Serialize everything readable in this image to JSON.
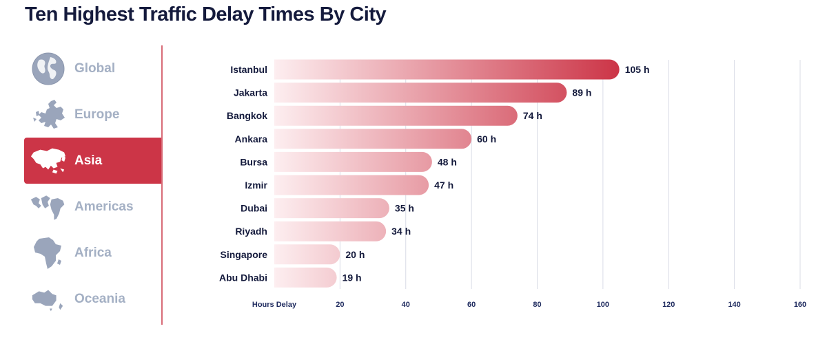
{
  "title": "Ten Highest Traffic Delay Times By City",
  "sidebar": {
    "items": [
      {
        "label": "Global",
        "icon": "globe-icon",
        "active": false
      },
      {
        "label": "Europe",
        "icon": "europe-map-icon",
        "active": false
      },
      {
        "label": "Asia",
        "icon": "asia-map-icon",
        "active": true
      },
      {
        "label": "Americas",
        "icon": "americas-map-icon",
        "active": false
      },
      {
        "label": "Africa",
        "icon": "africa-map-icon",
        "active": false
      },
      {
        "label": "Oceania",
        "icon": "oceania-map-icon",
        "active": false
      }
    ]
  },
  "colors": {
    "accent": "#cc3547",
    "bar_start": "#fdeef0",
    "bar_end": "#cc3547",
    "inactive_text": "#a4b0c4",
    "icon": "#9aa5bb",
    "title": "#141a3c",
    "grid": "#d9dce6"
  },
  "chart_data": {
    "type": "bar",
    "orientation": "horizontal",
    "title": "Ten Highest Traffic Delay Times By City",
    "categories": [
      "Istanbul",
      "Jakarta",
      "Bangkok",
      "Ankara",
      "Bursa",
      "Izmir",
      "Dubai",
      "Riyadh",
      "Singapore",
      "Abu Dhabi"
    ],
    "values": [
      105,
      89,
      74,
      60,
      48,
      47,
      35,
      34,
      20,
      19
    ],
    "value_labels": [
      "105 h",
      "89 h",
      "74 h",
      "60 h",
      "48 h",
      "47 h",
      "35 h",
      "34 h",
      "20 h",
      "19 h"
    ],
    "xlabel": "Hours Delay",
    "xticks": [
      20,
      40,
      60,
      80,
      100,
      120,
      140,
      160
    ],
    "xlim": [
      0,
      160
    ],
    "grid": true
  }
}
